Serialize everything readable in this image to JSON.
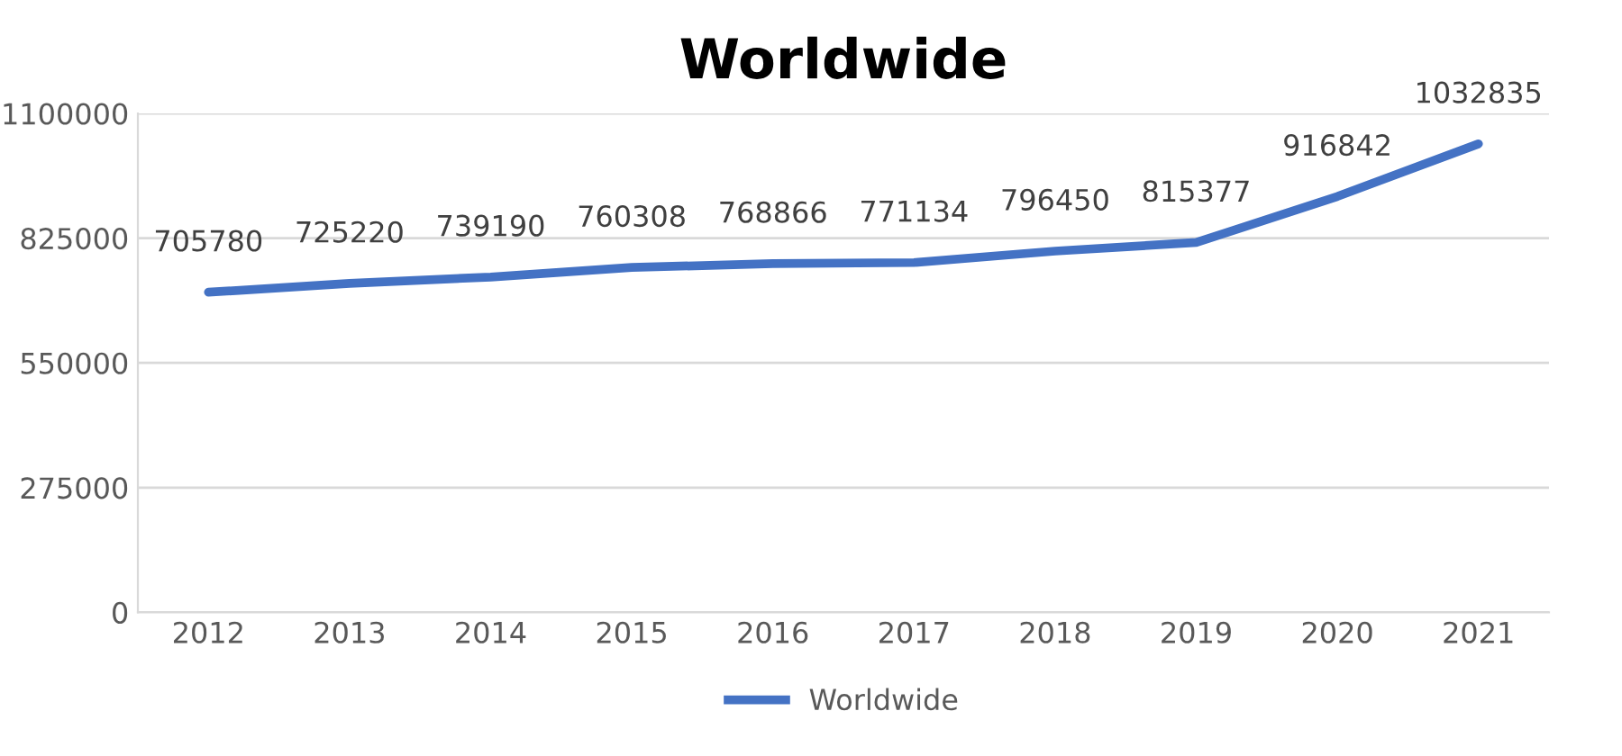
{
  "chart_data": {
    "type": "line",
    "title": "Worldwide",
    "categories": [
      "2012",
      "2013",
      "2014",
      "2015",
      "2016",
      "2017",
      "2018",
      "2019",
      "2020",
      "2021"
    ],
    "series": [
      {
        "name": "Worldwide",
        "color": "#4472c4",
        "values": [
          705780,
          725220,
          739190,
          760308,
          768866,
          771134,
          796450,
          815377,
          916842,
          1032835
        ]
      }
    ],
    "ylim": [
      0,
      1100000
    ],
    "yticks": [
      0,
      275000,
      550000,
      825000,
      1100000
    ],
    "grid": "y",
    "legend": "bottom",
    "data_labels": true,
    "marker": "none",
    "line_style": "solid"
  }
}
